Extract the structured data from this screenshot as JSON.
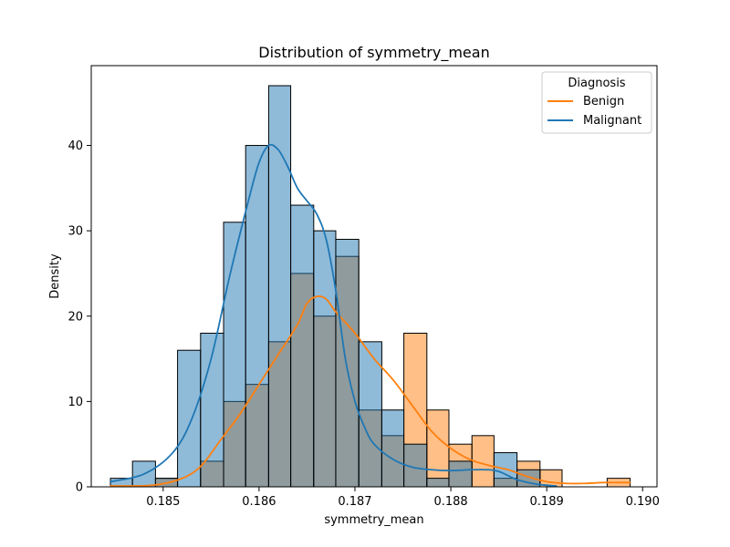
{
  "colors": {
    "benign": "#ff7f0e",
    "malignant": "#1f77b4",
    "axis": "#000000",
    "background": "#ffffff"
  },
  "chart_data": {
    "type": "histogram",
    "title": "Distribution of symmetry_mean",
    "xlabel": "symmetry_mean",
    "ylabel": "Density",
    "xlim": [
      0.18425,
      0.19015
    ],
    "ylim": [
      0,
      49.35
    ],
    "x_ticks": [
      0.185,
      0.186,
      0.187,
      0.188,
      0.189,
      0.19
    ],
    "x_tick_labels": [
      "0.185",
      "0.186",
      "0.187",
      "0.188",
      "0.189",
      "0.190"
    ],
    "y_ticks": [
      0,
      10,
      20,
      30,
      40
    ],
    "y_tick_labels": [
      "0",
      "10",
      "20",
      "30",
      "40"
    ],
    "grid": false,
    "bin_edges": [
      0.18445,
      0.18468,
      0.18492,
      0.18515,
      0.18539,
      0.18563,
      0.18586,
      0.1861,
      0.18633,
      0.18657,
      0.1868,
      0.18704,
      0.18728,
      0.18751,
      0.18775,
      0.18798,
      0.18822,
      0.18845,
      0.18869,
      0.18893,
      0.18916,
      0.1894,
      0.18963,
      0.18987
    ],
    "legend": {
      "title": "Diagnosis",
      "position": "upper right",
      "entries": [
        {
          "label": "Benign",
          "color": "#ff7f0e"
        },
        {
          "label": "Malignant",
          "color": "#1f77b4"
        }
      ]
    },
    "series": [
      {
        "name": "Malignant",
        "color": "#1f77b4",
        "density": [
          1,
          3,
          1,
          16,
          18,
          31,
          40,
          47,
          33,
          30,
          29,
          17,
          9,
          5,
          1,
          3,
          0,
          4,
          2,
          0,
          0,
          0,
          0
        ],
        "kde": [
          [
            0.18445,
            0.6
          ],
          [
            0.1848,
            1.5
          ],
          [
            0.1851,
            4.0
          ],
          [
            0.1853,
            8.0
          ],
          [
            0.1855,
            15.0
          ],
          [
            0.1857,
            25.0
          ],
          [
            0.1859,
            34.0
          ],
          [
            0.186,
            38.0
          ],
          [
            0.1861,
            40.0
          ],
          [
            0.1862,
            39.5
          ],
          [
            0.1863,
            37.5
          ],
          [
            0.1864,
            35.0
          ],
          [
            0.1865,
            33.5
          ],
          [
            0.1866,
            32.0
          ],
          [
            0.1867,
            29.0
          ],
          [
            0.1868,
            23.0
          ],
          [
            0.1869,
            15.0
          ],
          [
            0.187,
            10.0
          ],
          [
            0.1871,
            7.0
          ],
          [
            0.1872,
            5.0
          ],
          [
            0.1874,
            3.2
          ],
          [
            0.1876,
            2.3
          ],
          [
            0.1878,
            2.0
          ],
          [
            0.188,
            1.9
          ],
          [
            0.1882,
            2.0
          ],
          [
            0.1884,
            2.0
          ],
          [
            0.1885,
            1.8
          ],
          [
            0.1886,
            1.3
          ],
          [
            0.1887,
            0.8
          ],
          [
            0.1889,
            0.3
          ],
          [
            0.1891,
            0.1
          ]
        ]
      },
      {
        "name": "Benign",
        "color": "#ff7f0e",
        "density": [
          0,
          0,
          1,
          0,
          3,
          10,
          12,
          17,
          25,
          20,
          27,
          9,
          6,
          18,
          9,
          5,
          6,
          1,
          3,
          2,
          0,
          0,
          1
        ],
        "kde": [
          [
            0.18445,
            0.1
          ],
          [
            0.1849,
            0.2
          ],
          [
            0.1852,
            1.0
          ],
          [
            0.1854,
            2.5
          ],
          [
            0.1856,
            5.5
          ],
          [
            0.1858,
            8.5
          ],
          [
            0.186,
            12.0
          ],
          [
            0.1862,
            15.5
          ],
          [
            0.1864,
            19.0
          ],
          [
            0.1865,
            21.5
          ],
          [
            0.1866,
            22.3
          ],
          [
            0.1867,
            22.0
          ],
          [
            0.1868,
            20.5
          ],
          [
            0.187,
            18.0
          ],
          [
            0.1872,
            15.0
          ],
          [
            0.1874,
            12.5
          ],
          [
            0.1876,
            9.5
          ],
          [
            0.1878,
            6.5
          ],
          [
            0.188,
            4.5
          ],
          [
            0.1882,
            3.2
          ],
          [
            0.1884,
            2.5
          ],
          [
            0.1886,
            2.0
          ],
          [
            0.1888,
            1.2
          ],
          [
            0.189,
            0.6
          ],
          [
            0.1892,
            0.4
          ],
          [
            0.1894,
            0.4
          ],
          [
            0.1896,
            0.5
          ],
          [
            0.1898,
            0.5
          ],
          [
            0.18987,
            0.5
          ]
        ]
      }
    ]
  }
}
